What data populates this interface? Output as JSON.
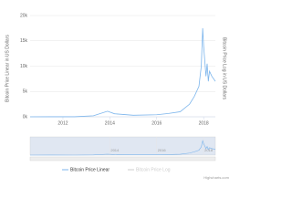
{
  "chart_data": {
    "type": "line",
    "y_label": "Bitcoin Price Linear in US Dollars",
    "y2_label": "Bitcoin Price Log in US Dollars",
    "x": [
      2010.6,
      2011.5,
      2012.5,
      2013.3,
      2013.9,
      2014.2,
      2015.0,
      2016.0,
      2016.5,
      2017.0,
      2017.4,
      2017.6,
      2017.8,
      2017.9,
      2017.96,
      2018.0,
      2018.05,
      2018.1,
      2018.15,
      2018.2,
      2018.25,
      2018.35,
      2018.5
    ],
    "series": [
      {
        "name": "Bitcoin Price Linear",
        "color": "#7cb5ec",
        "values": [
          0,
          15,
          10,
          200,
          1100,
          600,
          300,
          400,
          650,
          1000,
          2500,
          4000,
          6000,
          10000,
          17500,
          14000,
          11000,
          8000,
          10500,
          7000,
          9000,
          8000,
          7000
        ]
      },
      {
        "name": "Bitcoin Price Log",
        "color": "#cccccc",
        "visible": false,
        "axis": "y2",
        "values": [
          null,
          null,
          null,
          null,
          null,
          null,
          null,
          null,
          null,
          null,
          null,
          null,
          null,
          null,
          null,
          null,
          null,
          null,
          null,
          null,
          null,
          null,
          null
        ]
      }
    ],
    "xlim": [
      2010.6,
      2018.5
    ],
    "xticks": [
      2012,
      2014,
      2016,
      2018
    ],
    "ylim": [
      0,
      20000
    ],
    "yticks": [
      {
        "value": 0,
        "label": "0k"
      },
      {
        "value": 5000,
        "label": "5k"
      },
      {
        "value": 10000,
        "label": "10k"
      },
      {
        "value": 15000,
        "label": "15k"
      },
      {
        "value": 20000,
        "label": "20k"
      }
    ],
    "navigator_ticks": [
      2014,
      2016,
      2018
    ],
    "grid": true,
    "credits": "Highcharts.com"
  }
}
